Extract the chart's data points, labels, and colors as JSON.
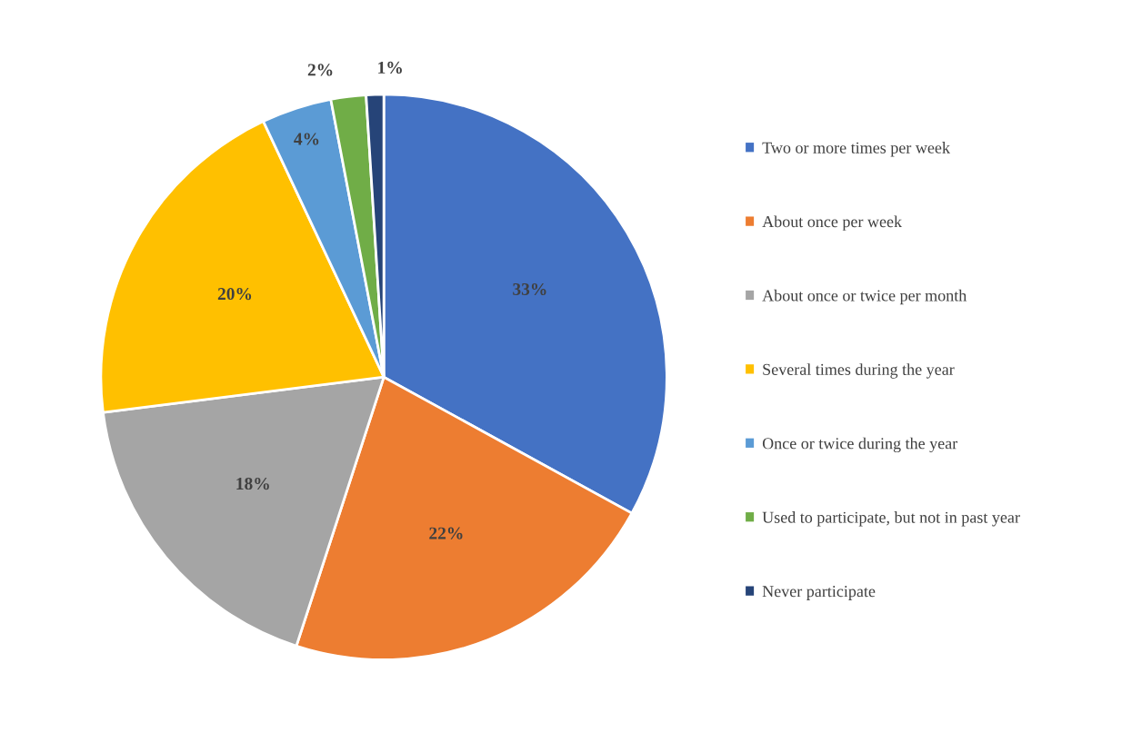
{
  "chart_data": {
    "type": "pie",
    "categories": [
      "Two or more times per week",
      "About once per week",
      "About once or twice per month",
      "Several times during the year",
      "Once or twice during the year",
      "Used to participate, but not in past year",
      "Never participate"
    ],
    "values": [
      33,
      22,
      18,
      20,
      4,
      2,
      1
    ],
    "colors": [
      "#4472c4",
      "#ed7d31",
      "#a5a5a5",
      "#ffc000",
      "#5b9bd5",
      "#70ad47",
      "#264478"
    ],
    "value_labels": [
      "33%",
      "22%",
      "18%",
      "20%",
      "4%",
      "2%",
      "1%"
    ],
    "legend": "right"
  }
}
